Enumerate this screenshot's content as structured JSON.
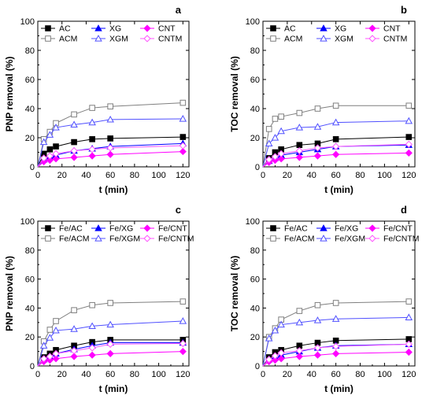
{
  "colors": {
    "black": "#000000",
    "gray": "#7f7f7f",
    "blue": "#0000ff",
    "magenta": "#ff00ff",
    "lightblue": "#5050ff",
    "pink": "#ff55ff"
  },
  "chart_data": [
    {
      "type": "line",
      "panel_label": "a",
      "xlabel": "t (min)",
      "ylabel": "PNP removal (%)",
      "xlim": [
        0,
        125
      ],
      "ylim": [
        0,
        100
      ],
      "xticks": [
        0,
        20,
        40,
        60,
        80,
        100,
        120
      ],
      "yticks": [
        0,
        20,
        40,
        60,
        80,
        100
      ],
      "x": [
        0,
        5,
        10,
        15,
        30,
        45,
        60,
        120
      ],
      "series": [
        {
          "name": "AC",
          "marker": "square-filled",
          "color": "#000000",
          "values": [
            0,
            9,
            12,
            14,
            17,
            19,
            19.5,
            20.5
          ]
        },
        {
          "name": "ACM",
          "marker": "square-open",
          "color": "#7f7f7f",
          "values": [
            0,
            19,
            24,
            30,
            36,
            40.5,
            41.5,
            44
          ]
        },
        {
          "name": "XG",
          "marker": "triangle-filled",
          "color": "#0000ff",
          "values": [
            0,
            5,
            7,
            8,
            11,
            12.5,
            14,
            16
          ]
        },
        {
          "name": "XGM",
          "marker": "triangle-open",
          "color": "#5050ff",
          "values": [
            0,
            17,
            22,
            27,
            29,
            30.5,
            32.5,
            33
          ]
        },
        {
          "name": "CNT",
          "marker": "diamond-filled",
          "color": "#ff00ff",
          "values": [
            0,
            3.5,
            4.5,
            5.5,
            6.5,
            7.5,
            8.5,
            10.5
          ]
        },
        {
          "name": "CNTM",
          "marker": "diamond-open",
          "color": "#ff55ff",
          "values": [
            0,
            6,
            7.5,
            9,
            11,
            12,
            13,
            14.5
          ]
        }
      ]
    },
    {
      "type": "line",
      "panel_label": "b",
      "xlabel": "t (min)",
      "ylabel": "TOC removal (%)",
      "xlim": [
        0,
        125
      ],
      "ylim": [
        0,
        100
      ],
      "xticks": [
        0,
        20,
        40,
        60,
        80,
        100,
        120
      ],
      "yticks": [
        0,
        20,
        40,
        60,
        80,
        100
      ],
      "x": [
        0,
        5,
        10,
        15,
        30,
        45,
        60,
        120
      ],
      "series": [
        {
          "name": "AC",
          "marker": "square-filled",
          "color": "#000000",
          "values": [
            0,
            6,
            10,
            12,
            15,
            16,
            19,
            20.5
          ]
        },
        {
          "name": "ACM",
          "marker": "square-open",
          "color": "#7f7f7f",
          "values": [
            0,
            26,
            33,
            34.5,
            37,
            40,
            42,
            42
          ]
        },
        {
          "name": "XG",
          "marker": "triangle-filled",
          "color": "#0000ff",
          "values": [
            0,
            4,
            6,
            8,
            10,
            12,
            14,
            15
          ]
        },
        {
          "name": "XGM",
          "marker": "triangle-open",
          "color": "#5050ff",
          "values": [
            0,
            16,
            20,
            24.5,
            27,
            27.5,
            30.5,
            31.5
          ]
        },
        {
          "name": "CNT",
          "marker": "diamond-filled",
          "color": "#ff00ff",
          "values": [
            0,
            3,
            4.5,
            5.5,
            6.5,
            7.5,
            8.5,
            9.5
          ]
        },
        {
          "name": "CNTM",
          "marker": "diamond-open",
          "color": "#ff55ff",
          "values": [
            0,
            5,
            7,
            9,
            11,
            13,
            14,
            15.5
          ]
        }
      ]
    },
    {
      "type": "line",
      "panel_label": "c",
      "xlabel": "t (min)",
      "ylabel": "PNP removal (%)",
      "xlim": [
        0,
        125
      ],
      "ylim": [
        0,
        100
      ],
      "xticks": [
        0,
        20,
        40,
        60,
        80,
        100,
        120
      ],
      "yticks": [
        0,
        20,
        40,
        60,
        80,
        100
      ],
      "x": [
        0,
        5,
        10,
        15,
        30,
        45,
        60,
        120
      ],
      "series": [
        {
          "name": "Fe/AC",
          "marker": "square-filled",
          "color": "#000000",
          "values": [
            0,
            6,
            8.5,
            11,
            14,
            16.5,
            18,
            18
          ]
        },
        {
          "name": "Fe/ACM",
          "marker": "square-open",
          "color": "#7f7f7f",
          "values": [
            0,
            17,
            25,
            31,
            38.5,
            42,
            43.5,
            44.5
          ]
        },
        {
          "name": "Fe/XG",
          "marker": "triangle-filled",
          "color": "#0000ff",
          "values": [
            0,
            4.5,
            6.5,
            8.5,
            11.5,
            14,
            16,
            16
          ]
        },
        {
          "name": "Fe/XGM",
          "marker": "triangle-open",
          "color": "#5050ff",
          "values": [
            0,
            14,
            19.5,
            24.5,
            25.5,
            27.5,
            28.5,
            31
          ]
        },
        {
          "name": "Fe/CNT",
          "marker": "diamond-filled",
          "color": "#ff00ff",
          "values": [
            0,
            3,
            4,
            5,
            6.5,
            7.5,
            8.5,
            10
          ]
        },
        {
          "name": "Fe/CNTM",
          "marker": "diamond-open",
          "color": "#ff55ff",
          "values": [
            0,
            5,
            6.5,
            8.5,
            10.5,
            12.5,
            15,
            15.5
          ]
        }
      ]
    },
    {
      "type": "line",
      "panel_label": "d",
      "xlabel": "t (min)",
      "ylabel": "TOC removal (%)",
      "xlim": [
        0,
        125
      ],
      "ylim": [
        0,
        100
      ],
      "xticks": [
        0,
        20,
        40,
        60,
        80,
        100,
        120
      ],
      "yticks": [
        0,
        20,
        40,
        60,
        80,
        100
      ],
      "x": [
        0,
        5,
        10,
        15,
        30,
        45,
        60,
        120
      ],
      "series": [
        {
          "name": "Fe/AC",
          "marker": "square-filled",
          "color": "#000000",
          "values": [
            0,
            6,
            9.5,
            11,
            14,
            16,
            17.5,
            18.5
          ]
        },
        {
          "name": "Fe/ACM",
          "marker": "square-open",
          "color": "#7f7f7f",
          "values": [
            0,
            20,
            26,
            32,
            38,
            42,
            43.5,
            44.5
          ]
        },
        {
          "name": "Fe/XG",
          "marker": "triangle-filled",
          "color": "#0000ff",
          "values": [
            0,
            4.5,
            6,
            7.5,
            10,
            12.5,
            14,
            15
          ]
        },
        {
          "name": "Fe/XGM",
          "marker": "triangle-open",
          "color": "#5050ff",
          "values": [
            0,
            19,
            24.5,
            28.5,
            30,
            31.5,
            32.5,
            33.5
          ]
        },
        {
          "name": "Fe/CNT",
          "marker": "diamond-filled",
          "color": "#ff00ff",
          "values": [
            0,
            3,
            4,
            5,
            6.5,
            7.5,
            8.5,
            9.5
          ]
        },
        {
          "name": "Fe/CNTM",
          "marker": "diamond-open",
          "color": "#ff55ff",
          "values": [
            0,
            4.5,
            7,
            9,
            10.5,
            12.5,
            13.5,
            15
          ]
        }
      ]
    }
  ]
}
